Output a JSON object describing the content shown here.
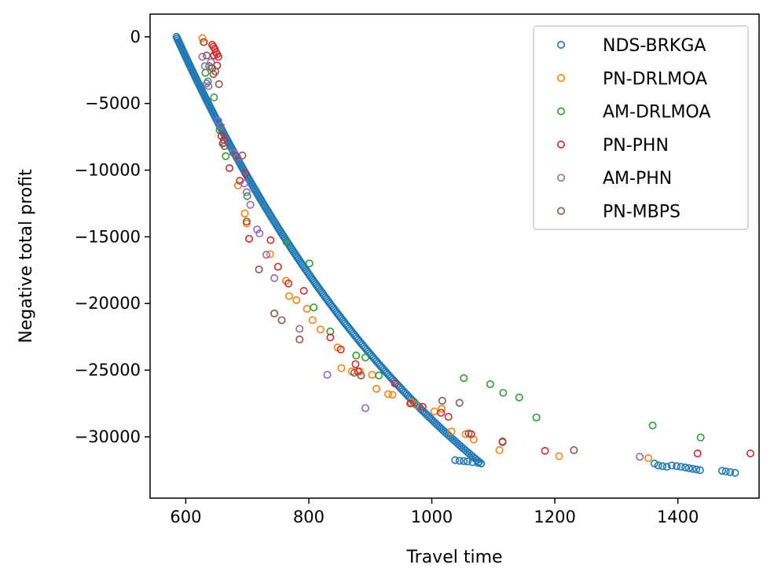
{
  "chart_data": {
    "type": "scatter",
    "title": "",
    "xlabel": "Travel time",
    "ylabel": "Negative total profit",
    "xlim": [
      542,
      1532
    ],
    "ylim": [
      -34600,
      1700
    ],
    "xticks": [
      600,
      800,
      1000,
      1200,
      1400
    ],
    "yticks": [
      0,
      -5000,
      -10000,
      -15000,
      -20000,
      -25000,
      -30000
    ],
    "xtick_labels": [
      "600",
      "800",
      "1000",
      "1200",
      "1400"
    ],
    "ytick_labels": [
      "0",
      "−5000",
      "−10000",
      "−15000",
      "−20000",
      "−25000",
      "−30000"
    ],
    "grid": false,
    "legend_position": "top-right",
    "marker": "hollow circle",
    "series": [
      {
        "name": "NDS-BRKGA",
        "color": "#1f77b4",
        "frontier": {
          "x_start": 585,
          "x_end": 1080,
          "y_start": 0,
          "y_end": -32000,
          "count": 260,
          "params": {
            "a": 18,
            "c": 500
          }
        },
        "points": [
          [
            1038,
            -31750
          ],
          [
            1045,
            -31800
          ],
          [
            1052,
            -31820
          ],
          [
            1058,
            -31850
          ],
          [
            1066,
            -31900
          ],
          [
            1075,
            -31950
          ],
          [
            1080,
            -32000
          ],
          [
            1362,
            -32000
          ],
          [
            1368,
            -32150
          ],
          [
            1375,
            -32200
          ],
          [
            1382,
            -32250
          ],
          [
            1390,
            -32150
          ],
          [
            1398,
            -32200
          ],
          [
            1405,
            -32250
          ],
          [
            1412,
            -32300
          ],
          [
            1418,
            -32350
          ],
          [
            1424,
            -32400
          ],
          [
            1430,
            -32450
          ],
          [
            1436,
            -32500
          ],
          [
            1472,
            -32550
          ],
          [
            1478,
            -32600
          ],
          [
            1485,
            -32650
          ],
          [
            1493,
            -32700
          ]
        ]
      },
      {
        "name": "PN-DRLMOA",
        "color": "#ff7f0e",
        "points": [
          [
            627,
            -100
          ],
          [
            630,
            -400
          ],
          [
            685,
            -11150
          ],
          [
            696,
            -13250
          ],
          [
            699,
            -14000
          ],
          [
            737,
            -16300
          ],
          [
            763,
            -18300
          ],
          [
            768,
            -19450
          ],
          [
            780,
            -19750
          ],
          [
            797,
            -20400
          ],
          [
            806,
            -21250
          ],
          [
            819,
            -21950
          ],
          [
            847,
            -23300
          ],
          [
            853,
            -24850
          ],
          [
            870,
            -25100
          ],
          [
            903,
            -25350
          ],
          [
            910,
            -26400
          ],
          [
            929,
            -26800
          ],
          [
            936,
            -26850
          ],
          [
            966,
            -27400
          ],
          [
            974,
            -27600
          ],
          [
            1004,
            -28100
          ],
          [
            1032,
            -29600
          ],
          [
            1055,
            -29800
          ],
          [
            1068,
            -30200
          ],
          [
            1110,
            -31000
          ],
          [
            1207,
            -31450
          ],
          [
            1352,
            -31600
          ],
          [
            1016,
            -27900
          ],
          [
            883,
            -25100
          ]
        ]
      },
      {
        "name": "AM-DRLMOA",
        "color": "#2ca02c",
        "points": [
          [
            632,
            -2700
          ],
          [
            636,
            -3350
          ],
          [
            646,
            -4550
          ],
          [
            655,
            -7000
          ],
          [
            665,
            -8950
          ],
          [
            700,
            -11950
          ],
          [
            764,
            -15400
          ],
          [
            801,
            -17000
          ],
          [
            808,
            -20300
          ],
          [
            835,
            -22100
          ],
          [
            877,
            -23900
          ],
          [
            892,
            -24050
          ],
          [
            914,
            -25400
          ],
          [
            1052,
            -25600
          ],
          [
            1095,
            -26050
          ],
          [
            1116,
            -26700
          ],
          [
            1142,
            -27050
          ],
          [
            1170,
            -28550
          ],
          [
            1359,
            -29150
          ],
          [
            1437,
            -30050
          ],
          [
            638,
            -2200
          ]
        ]
      },
      {
        "name": "PN-PHN",
        "color": "#d62728",
        "points": [
          [
            643,
            -600
          ],
          [
            645,
            -750
          ],
          [
            647,
            -900
          ],
          [
            649,
            -1150
          ],
          [
            651,
            -1300
          ],
          [
            653,
            -1500
          ],
          [
            651,
            -2150
          ],
          [
            658,
            -7450
          ],
          [
            662,
            -7750
          ],
          [
            671,
            -9850
          ],
          [
            688,
            -10800
          ],
          [
            697,
            -10250
          ],
          [
            703,
            -15150
          ],
          [
            738,
            -15250
          ],
          [
            750,
            -17250
          ],
          [
            767,
            -18500
          ],
          [
            792,
            -19050
          ],
          [
            835,
            -22550
          ],
          [
            852,
            -23450
          ],
          [
            876,
            -24550
          ],
          [
            940,
            -26000
          ],
          [
            965,
            -27500
          ],
          [
            985,
            -27750
          ],
          [
            1015,
            -28200
          ],
          [
            1027,
            -28500
          ],
          [
            1064,
            -29800
          ],
          [
            1115,
            -30350
          ],
          [
            1184,
            -31050
          ],
          [
            1432,
            -31250
          ],
          [
            1518,
            -31250
          ],
          [
            880,
            -25100
          ],
          [
            646,
            -1400
          ]
        ]
      },
      {
        "name": "AM-PHN",
        "color": "#9467bd",
        "points": [
          [
            627,
            -1500
          ],
          [
            631,
            -2200
          ],
          [
            634,
            -3500
          ],
          [
            637,
            -3700
          ],
          [
            653,
            -6300
          ],
          [
            657,
            -6700
          ],
          [
            661,
            -7950
          ],
          [
            677,
            -8700
          ],
          [
            684,
            -9050
          ],
          [
            695,
            -11000
          ],
          [
            699,
            -11650
          ],
          [
            705,
            -12600
          ],
          [
            716,
            -14450
          ],
          [
            720,
            -14750
          ],
          [
            731,
            -16350
          ],
          [
            744,
            -18100
          ],
          [
            785,
            -21900
          ],
          [
            830,
            -25350
          ],
          [
            892,
            -27850
          ],
          [
            1338,
            -31500
          ],
          [
            641,
            -1900
          ]
        ]
      },
      {
        "name": "PN-MBPS",
        "color": "#8c564b",
        "points": [
          [
            629,
            -400
          ],
          [
            634,
            -1400
          ],
          [
            643,
            -2350
          ],
          [
            645,
            -2800
          ],
          [
            648,
            -2600
          ],
          [
            654,
            -3550
          ],
          [
            660,
            -8000
          ],
          [
            663,
            -8200
          ],
          [
            682,
            -8950
          ],
          [
            692,
            -8900
          ],
          [
            699,
            -13850
          ],
          [
            719,
            -17450
          ],
          [
            744,
            -20750
          ],
          [
            756,
            -21250
          ],
          [
            785,
            -22700
          ],
          [
            874,
            -25200
          ],
          [
            885,
            -25400
          ],
          [
            1017,
            -27300
          ],
          [
            1045,
            -27450
          ],
          [
            1060,
            -29750
          ],
          [
            1115,
            -30400
          ],
          [
            1231,
            -31000
          ]
        ]
      }
    ]
  }
}
